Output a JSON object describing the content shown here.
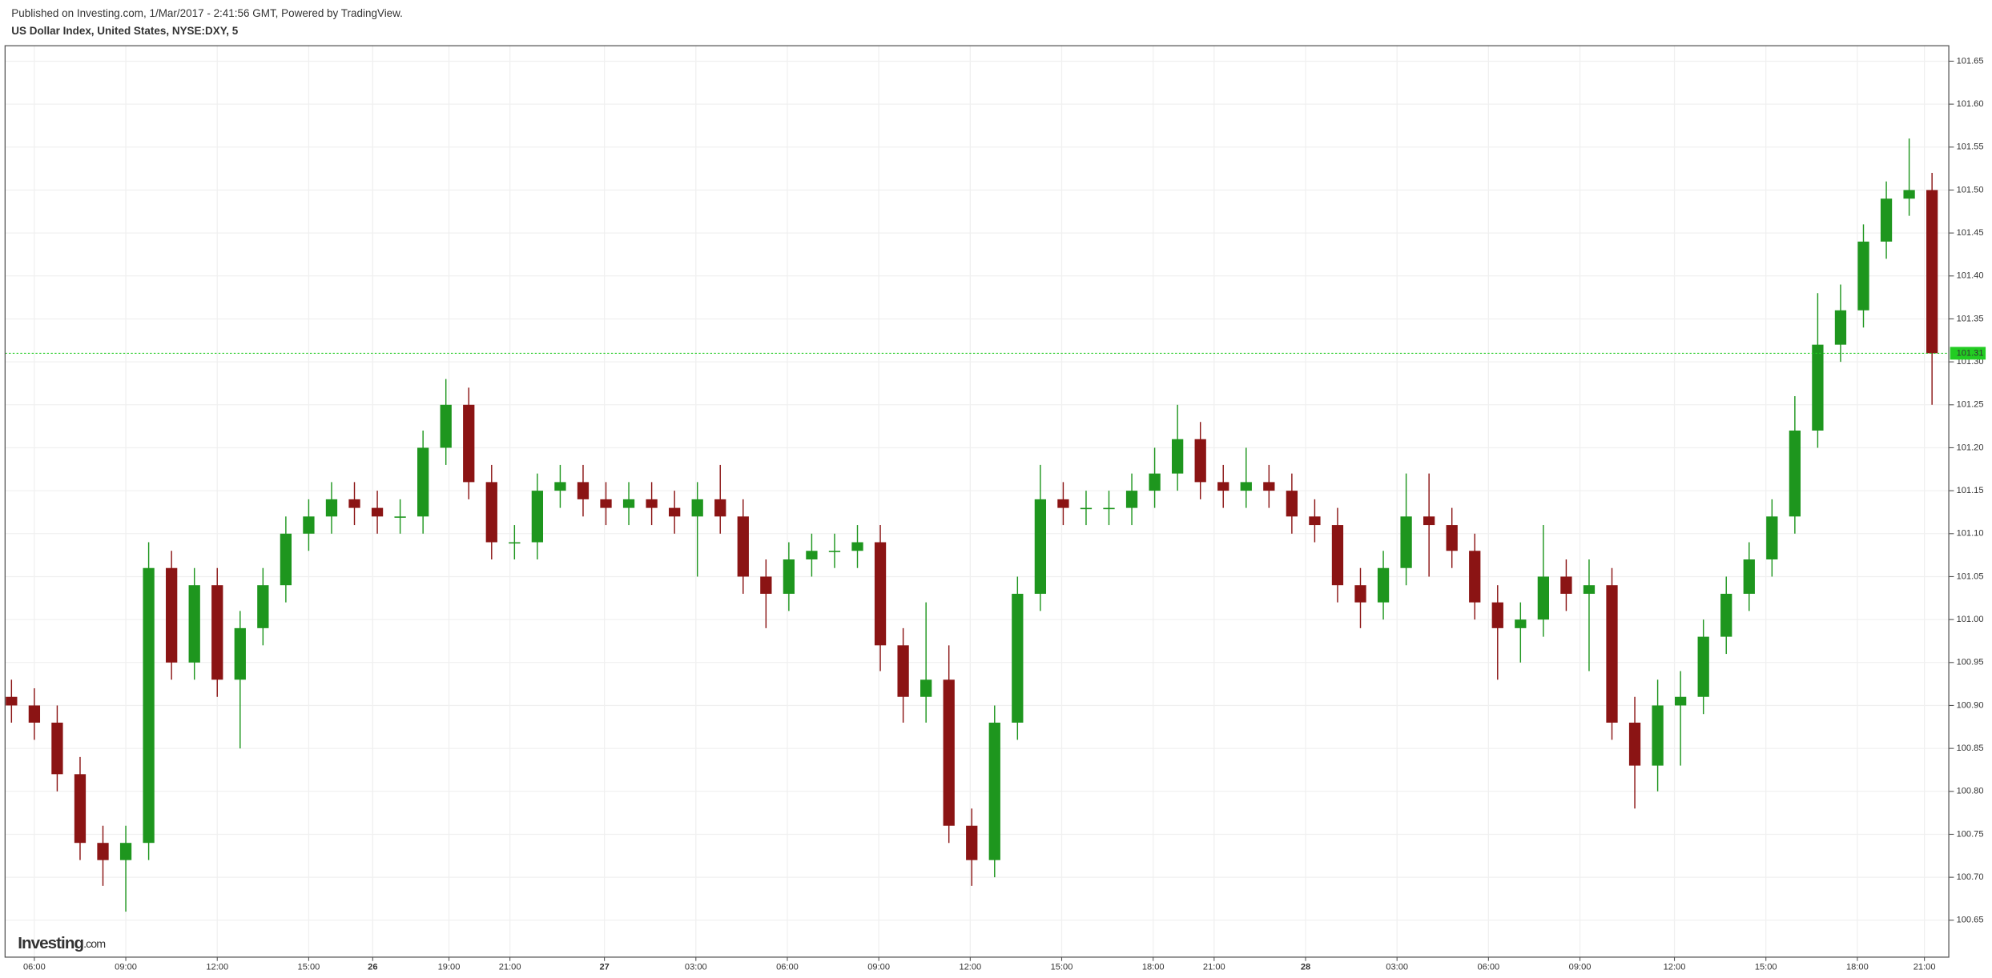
{
  "chart_data": {
    "type": "candlestick",
    "header": "Published on Investing.com, 1/Mar/2017 - 2:41:56 GMT, Powered by TradingView.",
    "title": "US Dollar Index, United States, NYSE:DXY, 5",
    "watermark": "Investing",
    "watermark_suffix": ".com",
    "up_color": "#1e961e",
    "down_color": "#8b1414",
    "last_color": "#22cc22",
    "grid": true,
    "last_price": 101.31,
    "xlim": [
      -0.96,
      62.8
    ],
    "xticks": [
      {
        "value": 0,
        "label": "06:00"
      },
      {
        "value": 3,
        "label": "09:00"
      },
      {
        "value": 6,
        "label": "12:00"
      },
      {
        "value": 9,
        "label": "15:00"
      },
      {
        "value": 11.1,
        "label": "26"
      },
      {
        "value": 13.6,
        "label": "19:00"
      },
      {
        "value": 15.6,
        "label": "21:00"
      },
      {
        "value": 18.7,
        "label": "27"
      },
      {
        "value": 21.7,
        "label": "03:00"
      },
      {
        "value": 24.7,
        "label": "06:00"
      },
      {
        "value": 27.7,
        "label": "09:00"
      },
      {
        "value": 30.7,
        "label": "12:00"
      },
      {
        "value": 33.7,
        "label": "15:00"
      },
      {
        "value": 36.7,
        "label": "18:00"
      },
      {
        "value": 38.7,
        "label": "21:00"
      },
      {
        "value": 41.7,
        "label": "28"
      },
      {
        "value": 44.7,
        "label": "03:00"
      },
      {
        "value": 47.7,
        "label": "06:00"
      },
      {
        "value": 50.7,
        "label": "09:00"
      },
      {
        "value": 53.8,
        "label": "12:00"
      },
      {
        "value": 56.8,
        "label": "15:00"
      },
      {
        "value": 59.8,
        "label": "18:00"
      },
      {
        "value": 62,
        "label": "21:00"
      }
    ],
    "ylim": [
      100.607,
      101.668
    ],
    "yticks": [
      100.65,
      {
        "value": 100.7,
        "label": "100.70"
      },
      100.75,
      {
        "value": 100.8,
        "label": "100.80"
      },
      100.85,
      {
        "value": 100.9,
        "label": "100.90"
      },
      100.95,
      {
        "value": 101.0,
        "label": "101.00"
      },
      101.05,
      {
        "value": 101.1,
        "label": "101.10"
      },
      101.15,
      {
        "value": 101.2,
        "label": "101.20"
      },
      101.25,
      {
        "value": 101.3,
        "label": "101.30"
      },
      101.35,
      {
        "value": 101.4,
        "label": "101.40"
      },
      101.45,
      {
        "value": 101.5,
        "label": "101.50"
      },
      101.55,
      {
        "value": 101.6,
        "label": "101.60"
      },
      101.65
    ],
    "x": [
      -0.75,
      0,
      0.75,
      1.5,
      2.25,
      3,
      3.75,
      4.5,
      5.25,
      6,
      6.75,
      7.5,
      8.25,
      9,
      9.75,
      10.5,
      11.25,
      12,
      12.75,
      13.5,
      14.25,
      15,
      15.75,
      16.5,
      17.25,
      18,
      18.75,
      19.5,
      20.25,
      21,
      21.75,
      22.5,
      23.25,
      24,
      24.75,
      25.5,
      26.25,
      27,
      27.75,
      28.5,
      29.25,
      30,
      30.75,
      31.5,
      32.25,
      33,
      33.75,
      34.5,
      35.25,
      36,
      36.75,
      37.5,
      38.25,
      39,
      39.75,
      40.5,
      41.25,
      42,
      42.75,
      43.5,
      44.25,
      45,
      45.75,
      46.5,
      47.25,
      48,
      48.75,
      49.5,
      50.25,
      51,
      51.75,
      52.5,
      53.25,
      54,
      54.75,
      55.5,
      56.25,
      57,
      57.75,
      58.5,
      59.25,
      60,
      60.75,
      61.5,
      62.25
    ],
    "open": [
      100.91,
      100.9,
      100.88,
      100.82,
      100.74,
      100.72,
      100.74,
      101.06,
      100.95,
      101.04,
      100.93,
      100.99,
      101.04,
      101.1,
      101.12,
      101.14,
      101.13,
      101.12,
      101.12,
      101.2,
      101.25,
      101.16,
      101.09,
      101.09,
      101.15,
      101.16,
      101.14,
      101.13,
      101.14,
      101.13,
      101.12,
      101.14,
      101.12,
      101.05,
      101.03,
      101.07,
      101.08,
      101.08,
      101.09,
      100.97,
      100.91,
      100.93,
      100.76,
      100.72,
      100.88,
      101.03,
      101.14,
      101.13,
      101.13,
      101.13,
      101.15,
      101.17,
      101.21,
      101.16,
      101.15,
      101.16,
      101.15,
      101.12,
      101.11,
      101.04,
      101.02,
      101.06,
      101.12,
      101.11,
      101.08,
      101.02,
      100.99,
      101.0,
      101.05,
      101.03,
      101.04,
      100.88,
      100.83,
      100.9,
      100.91,
      100.98,
      101.03,
      101.07,
      101.12,
      101.22,
      101.32,
      101.36,
      101.44,
      101.49,
      101.5
    ],
    "high": [
      100.93,
      100.92,
      100.9,
      100.84,
      100.76,
      100.76,
      101.09,
      101.08,
      101.06,
      101.06,
      101.01,
      101.06,
      101.12,
      101.14,
      101.16,
      101.16,
      101.15,
      101.14,
      101.22,
      101.28,
      101.27,
      101.18,
      101.11,
      101.17,
      101.18,
      101.18,
      101.16,
      101.16,
      101.16,
      101.15,
      101.16,
      101.18,
      101.14,
      101.07,
      101.09,
      101.1,
      101.1,
      101.11,
      101.11,
      100.99,
      101.02,
      100.97,
      100.78,
      100.9,
      101.05,
      101.18,
      101.16,
      101.15,
      101.15,
      101.17,
      101.2,
      101.25,
      101.23,
      101.18,
      101.2,
      101.18,
      101.17,
      101.14,
      101.13,
      101.06,
      101.08,
      101.17,
      101.17,
      101.13,
      101.1,
      101.04,
      101.02,
      101.11,
      101.07,
      101.07,
      101.06,
      100.91,
      100.93,
      100.94,
      101.0,
      101.05,
      101.09,
      101.14,
      101.26,
      101.38,
      101.39,
      101.46,
      101.51,
      101.56,
      101.52
    ],
    "low": [
      100.88,
      100.86,
      100.8,
      100.72,
      100.69,
      100.66,
      100.72,
      100.93,
      100.93,
      100.91,
      100.85,
      100.97,
      101.02,
      101.08,
      101.1,
      101.11,
      101.1,
      101.1,
      101.1,
      101.18,
      101.14,
      101.07,
      101.07,
      101.07,
      101.13,
      101.12,
      101.11,
      101.11,
      101.11,
      101.1,
      101.05,
      101.1,
      101.03,
      100.99,
      101.01,
      101.05,
      101.06,
      101.06,
      100.94,
      100.88,
      100.88,
      100.74,
      100.69,
      100.7,
      100.86,
      101.01,
      101.11,
      101.11,
      101.11,
      101.11,
      101.13,
      101.15,
      101.14,
      101.13,
      101.13,
      101.13,
      101.1,
      101.09,
      101.02,
      100.99,
      101.0,
      101.04,
      101.05,
      101.06,
      101.0,
      100.93,
      100.95,
      100.98,
      101.01,
      100.94,
      100.86,
      100.78,
      100.8,
      100.83,
      100.89,
      100.96,
      101.01,
      101.05,
      101.1,
      101.2,
      101.3,
      101.34,
      101.42,
      101.47,
      101.25
    ],
    "close": [
      100.9,
      100.88,
      100.82,
      100.74,
      100.72,
      100.74,
      101.06,
      100.95,
      101.04,
      100.93,
      100.99,
      101.04,
      101.1,
      101.12,
      101.14,
      101.13,
      101.12,
      101.12,
      101.2,
      101.25,
      101.16,
      101.09,
      101.09,
      101.15,
      101.16,
      101.14,
      101.13,
      101.14,
      101.13,
      101.12,
      101.14,
      101.12,
      101.05,
      101.03,
      101.07,
      101.08,
      101.08,
      101.09,
      100.97,
      100.91,
      100.93,
      100.76,
      100.72,
      100.88,
      101.03,
      101.14,
      101.13,
      101.13,
      101.13,
      101.15,
      101.17,
      101.21,
      101.16,
      101.15,
      101.16,
      101.15,
      101.12,
      101.11,
      101.04,
      101.02,
      101.06,
      101.12,
      101.11,
      101.08,
      101.02,
      100.99,
      101.0,
      101.05,
      101.03,
      101.04,
      100.88,
      100.83,
      100.9,
      100.91,
      100.98,
      101.03,
      101.07,
      101.12,
      101.22,
      101.32,
      101.36,
      101.44,
      101.49,
      101.5,
      101.31
    ]
  }
}
